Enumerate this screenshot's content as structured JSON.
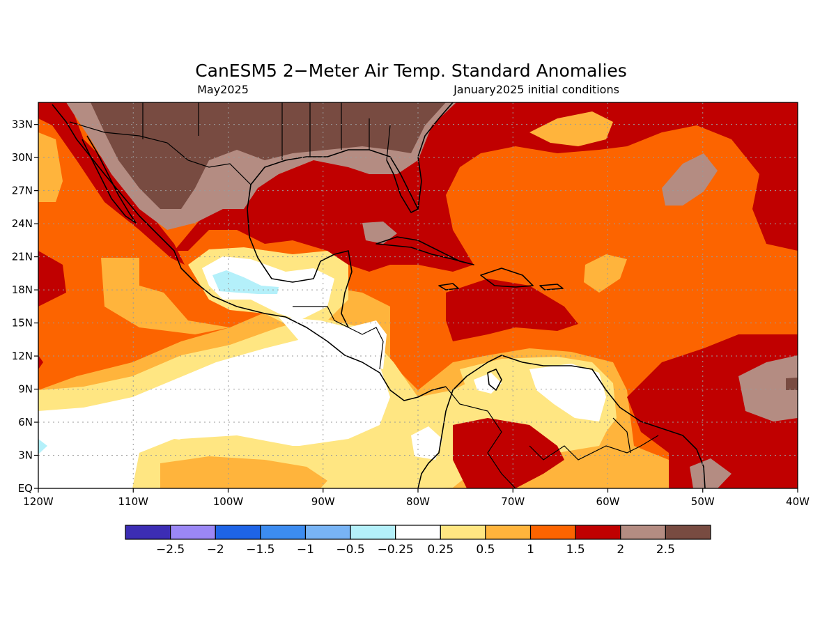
{
  "title": "CanESM5 2−Meter Air Temp. Standard Anomalies",
  "subtitle_left": "May2025",
  "subtitle_right": "January2025 initial conditions",
  "map": {
    "lon_range": [
      -120,
      -40
    ],
    "lat_range": [
      0,
      35
    ],
    "lon_ticks": [
      {
        "value": -120,
        "label": "120W"
      },
      {
        "value": -110,
        "label": "110W"
      },
      {
        "value": -100,
        "label": "100W"
      },
      {
        "value": -90,
        "label": "90W"
      },
      {
        "value": -80,
        "label": "80W"
      },
      {
        "value": -70,
        "label": "70W"
      },
      {
        "value": -60,
        "label": "60W"
      },
      {
        "value": -50,
        "label": "50W"
      },
      {
        "value": -40,
        "label": "40W"
      }
    ],
    "lat_ticks": [
      {
        "value": 0,
        "label": "EQ"
      },
      {
        "value": 3,
        "label": "3N"
      },
      {
        "value": 6,
        "label": "6N"
      },
      {
        "value": 9,
        "label": "9N"
      },
      {
        "value": 12,
        "label": "12N"
      },
      {
        "value": 15,
        "label": "15N"
      },
      {
        "value": 18,
        "label": "18N"
      },
      {
        "value": 21,
        "label": "21N"
      },
      {
        "value": 24,
        "label": "24N"
      },
      {
        "value": 27,
        "label": "27N"
      },
      {
        "value": 30,
        "label": "30N"
      },
      {
        "value": 33,
        "label": "33N"
      }
    ],
    "grid": true,
    "background_class_color": "#fc6400"
  },
  "colorbar": {
    "colors": [
      "#3c2db4",
      "#9b87f5",
      "#1e64e6",
      "#3c8cf0",
      "#78b4f5",
      "#b4f0fa",
      "#ffffff",
      "#ffe682",
      "#ffb43c",
      "#fc6400",
      "#c00000",
      "#b48c82",
      "#784b41"
    ],
    "labels": [
      "−2.5",
      "−2",
      "−1.5",
      "−1",
      "−0.5",
      "−0.25",
      "0.25",
      "0.5",
      "1",
      "1.5",
      "2",
      "2.5"
    ]
  }
}
